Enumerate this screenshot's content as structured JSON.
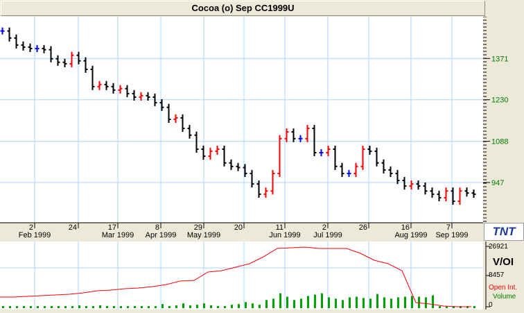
{
  "window": {
    "title": "Cocoa (o) Sep CC1999U"
  },
  "price_axis": {
    "labels": [
      "1371",
      "1230",
      "1088",
      "947"
    ],
    "color": "#008000"
  },
  "date_axis": [
    {
      "day": "2",
      "month": "Feb 1999"
    },
    {
      "day": "24",
      "month": ""
    },
    {
      "day": "17",
      "month": "Mar 1999"
    },
    {
      "day": "8",
      "month": "Apr 1999"
    },
    {
      "day": "29",
      "month": "May 1999"
    },
    {
      "day": "20",
      "month": ""
    },
    {
      "day": "11",
      "month": "Jun 1999"
    },
    {
      "day": "2",
      "month": "Jul 1999"
    },
    {
      "day": "26",
      "month": ""
    },
    {
      "day": "16",
      "month": "Aug 1999"
    },
    {
      "day": "7",
      "month": "Sep 1999"
    }
  ],
  "logo": "TNT",
  "volume_panel": {
    "title": "V/OI",
    "labels": [
      "26921",
      "8457",
      "0"
    ],
    "legend_oi": "Open Int.",
    "legend_volume": "Volume",
    "oi_color": "#ff0000",
    "volume_color": "#00a000"
  },
  "chart_data": {
    "type": "bar",
    "ylim": [
      864,
      1514
    ],
    "closes": [
      1465,
      1441,
      1417,
      1410,
      1405,
      1405,
      1401,
      1370,
      1358,
      1353,
      1382,
      1363,
      1334,
      1275,
      1282,
      1275,
      1263,
      1268,
      1251,
      1239,
      1244,
      1239,
      1220,
      1204,
      1163,
      1168,
      1132,
      1109,
      1061,
      1037,
      1054,
      1061,
      1014,
      1002,
      998,
      978,
      942,
      907,
      918,
      978,
      1097,
      1120,
      1097,
      1097,
      1132,
      1049,
      1049,
      1061,
      1002,
      978,
      978,
      1002,
      1061,
      1054,
      1014,
      990,
      978,
      954,
      935,
      942,
      935,
      918,
      907,
      895,
      918,
      883,
      918,
      911,
      907
    ],
    "open_interest": [
      4332,
      4332,
      4641,
      4951,
      5260,
      5570,
      6188,
      7117,
      7427,
      8045,
      8354,
      8973,
      9901,
      11448,
      11758,
      15471,
      16090,
      17637,
      19184,
      22278,
      25991,
      26300,
      26610,
      25991,
      25991,
      25991,
      23825,
      20731,
      19184,
      16090,
      1857,
      1238,
      309,
      0,
      0
    ],
    "volume": [
      300,
      300,
      300,
      300,
      300,
      300,
      300,
      300,
      300,
      300,
      300,
      600,
      300,
      300,
      600,
      300,
      300,
      300,
      300,
      300,
      300,
      300,
      300,
      1200,
      300,
      600,
      1500,
      600,
      900,
      1500,
      600,
      300,
      300,
      900,
      1200,
      2100,
      1500,
      900,
      3000,
      3600,
      6000,
      4500,
      3000,
      3600,
      4800,
      5400,
      6000,
      4200,
      3600,
      3000,
      4200,
      4500,
      3900,
      3600,
      5700,
      4200,
      3600,
      4200,
      4500,
      4800,
      4500,
      4200,
      5100,
      300,
      300,
      300,
      300,
      300,
      300
    ],
    "ylim_oi": [
      0,
      26921
    ]
  }
}
